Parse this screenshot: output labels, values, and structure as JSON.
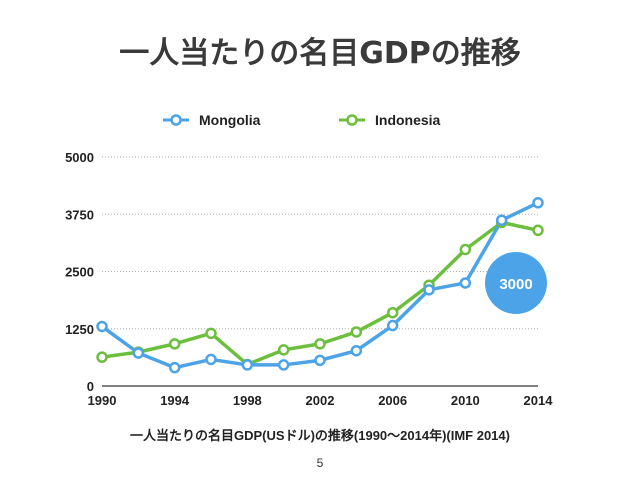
{
  "slide": {
    "title": "一人当たりの名目GDPの推移",
    "caption": "一人当たりの名目GDP(USドル)の推移(1990〜2014年)(IMF 2014)",
    "page_number": "5"
  },
  "chart_data": {
    "type": "line",
    "x": [
      1990,
      1992,
      1994,
      1996,
      1998,
      2000,
      2002,
      2004,
      2006,
      2008,
      2010,
      2012,
      2014
    ],
    "xticks": [
      "1990",
      "1994",
      "1998",
      "2002",
      "2006",
      "2010",
      "2014"
    ],
    "yticks": [
      "0",
      "1250",
      "2500",
      "3750",
      "5000"
    ],
    "ylim": [
      0,
      5000
    ],
    "xlim": [
      1990,
      2014
    ],
    "grid": true,
    "legend_position": "top-center",
    "series": [
      {
        "name": "Mongolia",
        "color": "#4da3e8",
        "values": [
          1300,
          720,
          400,
          580,
          460,
          460,
          560,
          770,
          1320,
          2100,
          2250,
          3620,
          4000
        ]
      },
      {
        "name": "Indonesia",
        "color": "#6cbf3c",
        "values": [
          630,
          740,
          920,
          1150,
          470,
          790,
          920,
          1180,
          1600,
          2200,
          2980,
          3570,
          3400
        ]
      }
    ],
    "annotation": {
      "text": "3000",
      "color": "#4da3e8"
    }
  }
}
